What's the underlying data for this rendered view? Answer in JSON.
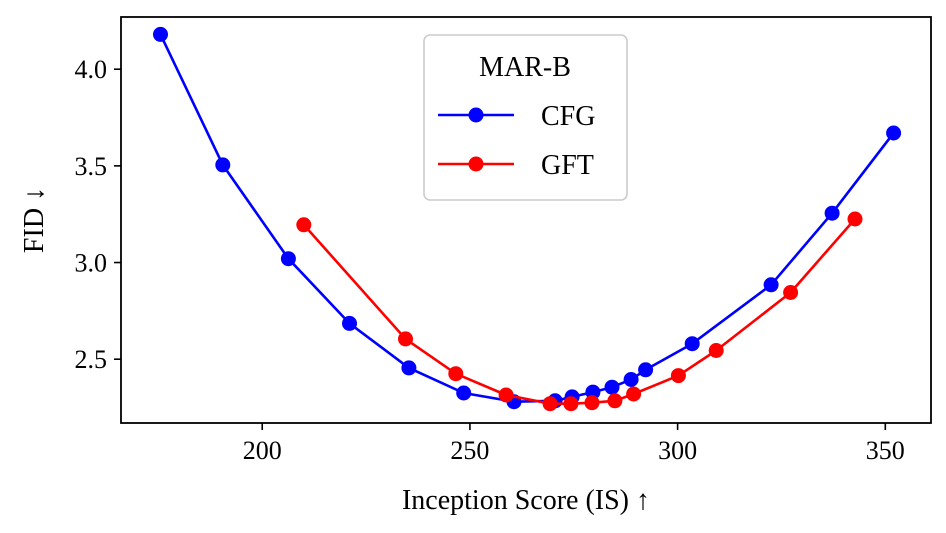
{
  "chart_data": {
    "type": "line",
    "title": "",
    "xlabel": "Inception Score (IS) ↑",
    "ylabel": "FID ↓",
    "xlim": [
      166,
      361
    ],
    "ylim": [
      2.17,
      4.27
    ],
    "xticks": [
      200,
      250,
      300,
      350
    ],
    "yticks": [
      2.5,
      3.0,
      3.5,
      4.0
    ],
    "xtick_labels": [
      "200",
      "250",
      "300",
      "350"
    ],
    "ytick_labels": [
      "2.5",
      "3.0",
      "3.5",
      "4.0"
    ],
    "grid": false,
    "legend": {
      "title": "MAR-B",
      "position": "top-center"
    },
    "series": [
      {
        "name": "CFG",
        "color": "#0000ff",
        "x": [
          175.5,
          190.5,
          206.3,
          221.0,
          235.3,
          248.5,
          260.6,
          270.5,
          274.6,
          279.6,
          284.2,
          288.8,
          292.3,
          303.5,
          322.5,
          337.2,
          352.0
        ],
        "y": [
          4.18,
          3.505,
          3.02,
          2.685,
          2.455,
          2.325,
          2.28,
          2.285,
          2.305,
          2.33,
          2.355,
          2.395,
          2.445,
          2.58,
          2.885,
          3.255,
          3.67
        ]
      },
      {
        "name": "GFT",
        "color": "#ff0000",
        "x": [
          210.0,
          234.5,
          246.6,
          258.7,
          269.3,
          274.3,
          279.4,
          284.9,
          289.4,
          300.2,
          309.3,
          327.2,
          342.7
        ],
        "y": [
          3.195,
          2.605,
          2.425,
          2.315,
          2.27,
          2.27,
          2.275,
          2.285,
          2.32,
          2.415,
          2.545,
          2.845,
          3.225
        ]
      }
    ]
  }
}
